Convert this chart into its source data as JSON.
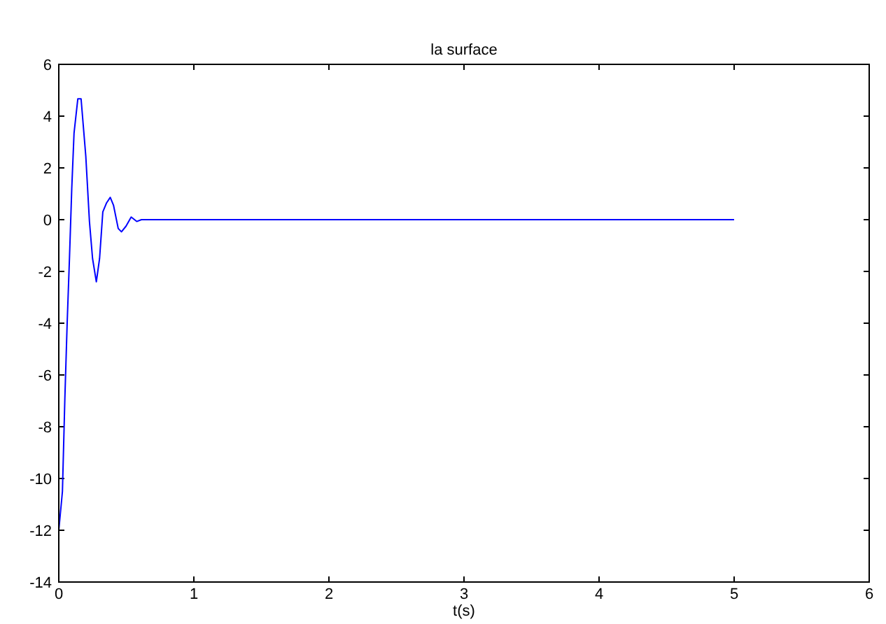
{
  "chart_data": {
    "type": "line",
    "title": "la surface",
    "xlabel": "t(s)",
    "xlim": [
      0,
      6
    ],
    "xticks": [
      0,
      1,
      2,
      3,
      4,
      5,
      6
    ],
    "ylim": [
      -14,
      6
    ],
    "yticks": [
      -14,
      -12,
      -10,
      -8,
      -6,
      -4,
      -2,
      0,
      2,
      4,
      6
    ],
    "grid": false,
    "series": [
      {
        "color": "#0000ff",
        "x": [
          0,
          0.027,
          0.045,
          0.062,
          0.079,
          0.096,
          0.113,
          0.141,
          0.165,
          0.2,
          0.227,
          0.25,
          0.278,
          0.302,
          0.326,
          0.354,
          0.381,
          0.405,
          0.44,
          0.464,
          0.498,
          0.536,
          0.577,
          0.612,
          5
        ],
        "values": [
          -12,
          -10.5,
          -6.9,
          -4,
          -1.5,
          1.2,
          3.35,
          4.67,
          4.67,
          2.45,
          -0.07,
          -1.5,
          -2.4,
          -1.5,
          0.3,
          0.65,
          0.86,
          0.56,
          -0.34,
          -0.47,
          -0.25,
          0.1,
          -0.07,
          0,
          0
        ]
      }
    ]
  }
}
